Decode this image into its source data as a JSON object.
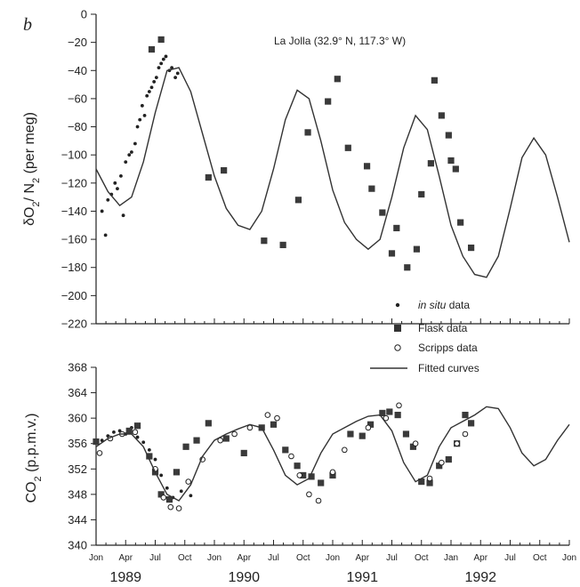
{
  "chart_data": [
    {
      "type": "scatter",
      "panel_label": "b",
      "annotation": "La Jolla (32.9° N, 117.3° W)",
      "ylabel_parts": [
        "δO",
        "2",
        "/ N",
        "2",
        " (per meg)"
      ],
      "ylim": [
        -220,
        0
      ],
      "yticks": [
        0,
        -20,
        -40,
        -60,
        -80,
        -100,
        -120,
        -140,
        -160,
        -180,
        -200,
        -220
      ],
      "xlim": [
        1989.0,
        1993.0
      ],
      "series": [
        {
          "name": "in situ data",
          "marker": "dot",
          "x": [
            1989.05,
            1989.08,
            1989.1,
            1989.13,
            1989.16,
            1989.18,
            1989.21,
            1989.23,
            1989.25,
            1989.28,
            1989.3,
            1989.33,
            1989.35,
            1989.37,
            1989.39,
            1989.41,
            1989.43,
            1989.45,
            1989.47,
            1989.49,
            1989.51,
            1989.53,
            1989.55,
            1989.57,
            1989.59,
            1989.62,
            1989.64,
            1989.67,
            1989.69
          ],
          "y": [
            -140,
            -157,
            -132,
            -128,
            -120,
            -124,
            -115,
            -143,
            -105,
            -100,
            -98,
            -92,
            -80,
            -75,
            -65,
            -72,
            -58,
            -55,
            -52,
            -48,
            -45,
            -38,
            -35,
            -32,
            -30,
            -40,
            -38,
            -45,
            -42
          ]
        },
        {
          "name": "Flask data",
          "marker": "square",
          "x": [
            1989.47,
            1989.55,
            1989.95,
            1990.08,
            1990.42,
            1990.58,
            1990.71,
            1990.79,
            1990.96,
            1991.04,
            1991.13,
            1991.29,
            1991.33,
            1991.42,
            1991.5,
            1991.54,
            1991.63,
            1991.71,
            1991.75,
            1991.83,
            1991.86,
            1991.92,
            1991.98,
            1992.0,
            1992.04,
            1992.08,
            1992.17
          ],
          "y": [
            -25,
            -18,
            -116,
            -111,
            -161,
            -164,
            -132,
            -84,
            -62,
            -46,
            -95,
            -108,
            -124,
            -141,
            -170,
            -152,
            -180,
            -167,
            -128,
            -106,
            -47,
            -72,
            -86,
            -104,
            -110,
            -148,
            -166
          ]
        },
        {
          "name": "Fitted curves",
          "marker": "line",
          "x": [
            1989.0,
            1989.1,
            1989.2,
            1989.3,
            1989.4,
            1989.5,
            1989.6,
            1989.7,
            1989.8,
            1989.9,
            1990.0,
            1990.1,
            1990.2,
            1990.3,
            1990.4,
            1990.5,
            1990.6,
            1990.7,
            1990.8,
            1990.9,
            1991.0,
            1991.1,
            1991.2,
            1991.3,
            1991.4,
            1991.5,
            1991.6,
            1991.7,
            1991.8,
            1991.9,
            1992.0,
            1992.1,
            1992.2,
            1992.3,
            1992.4,
            1992.5,
            1992.6,
            1992.7,
            1992.8,
            1992.9,
            1993.0
          ],
          "y": [
            -110,
            -126,
            -136,
            -130,
            -105,
            -70,
            -40,
            -38,
            -55,
            -85,
            -115,
            -138,
            -150,
            -153,
            -140,
            -110,
            -75,
            -54,
            -60,
            -90,
            -125,
            -148,
            -160,
            -167,
            -160,
            -130,
            -95,
            -72,
            -82,
            -115,
            -150,
            -172,
            -185,
            -187,
            -172,
            -138,
            -102,
            -88,
            -100,
            -130,
            -162
          ]
        }
      ]
    },
    {
      "type": "scatter",
      "ylabel_parts": [
        "CO",
        "2",
        " (p.p.m.v.)"
      ],
      "ylim": [
        340,
        368
      ],
      "yticks": [
        368,
        364,
        360,
        356,
        352,
        348,
        344,
        340
      ],
      "xlim": [
        1989.0,
        1993.0
      ],
      "x_tick_labels": [
        "Jon",
        "Apr",
        "Jul",
        "Oct",
        "Jon",
        "Apr",
        "Jul",
        "Oct",
        "Jon",
        "Apr",
        "Jul",
        "Oct",
        "Jan",
        "Apr",
        "Jul",
        "Oct",
        "Jon"
      ],
      "year_labels": [
        "1989",
        "1990",
        "1991",
        "1992"
      ],
      "legend": [
        "in situ data",
        "Flask data",
        "Scripps data",
        "Fitted curves"
      ],
      "legend_markers": [
        "dot",
        "square",
        "circle",
        "line"
      ],
      "series": [
        {
          "name": "in situ data",
          "marker": "dot",
          "x": [
            1989.05,
            1989.1,
            1989.15,
            1989.2,
            1989.25,
            1989.3,
            1989.35,
            1989.4,
            1989.45,
            1989.5,
            1989.55,
            1989.6,
            1989.65,
            1989.72,
            1989.8
          ],
          "y": [
            356.5,
            357.2,
            357.8,
            358.0,
            357.5,
            358.5,
            357.0,
            356.2,
            355.0,
            353.5,
            351.0,
            349.0,
            347.5,
            348.5,
            347.8
          ]
        },
        {
          "name": "Flask data",
          "marker": "square",
          "x": [
            1989.0,
            1989.28,
            1989.35,
            1989.45,
            1989.5,
            1989.55,
            1989.62,
            1989.68,
            1989.76,
            1989.85,
            1989.95,
            1990.1,
            1990.25,
            1990.4,
            1990.5,
            1990.6,
            1990.7,
            1990.75,
            1990.82,
            1990.9,
            1991.0,
            1991.15,
            1991.25,
            1991.32,
            1991.42,
            1991.48,
            1991.55,
            1991.62,
            1991.68,
            1991.75,
            1991.82,
            1991.9,
            1991.98,
            1992.05,
            1992.12,
            1992.17
          ],
          "y": [
            356.3,
            358.0,
            358.8,
            354.0,
            351.5,
            348.0,
            347.2,
            351.5,
            355.5,
            356.5,
            359.2,
            356.8,
            354.5,
            358.5,
            359.0,
            355.0,
            352.5,
            351.0,
            350.8,
            349.8,
            351.0,
            357.5,
            357.2,
            359.0,
            360.8,
            361.0,
            360.5,
            357.5,
            355.5,
            350.0,
            349.8,
            352.5,
            353.5,
            356.0,
            360.5,
            359.2
          ]
        },
        {
          "name": "Scripps data",
          "marker": "circle",
          "x": [
            1989.03,
            1989.12,
            1989.22,
            1989.33,
            1989.5,
            1989.57,
            1989.63,
            1989.7,
            1989.78,
            1989.9,
            1990.05,
            1990.17,
            1990.3,
            1990.45,
            1990.53,
            1990.65,
            1990.72,
            1990.8,
            1990.88,
            1991.0,
            1991.1,
            1991.3,
            1991.45,
            1991.56,
            1991.7,
            1991.82,
            1991.92,
            1992.05,
            1992.12
          ],
          "y": [
            354.5,
            356.8,
            357.5,
            357.8,
            352.0,
            347.5,
            346.0,
            345.8,
            350.0,
            353.5,
            356.5,
            357.5,
            358.5,
            360.5,
            360.0,
            354.0,
            351.0,
            348.0,
            347.0,
            351.5,
            355.0,
            358.5,
            360.0,
            362.0,
            356.0,
            350.5,
            353.0,
            356.0,
            357.5
          ]
        },
        {
          "name": "Fitted curves",
          "marker": "line",
          "x": [
            1989.0,
            1989.1,
            1989.2,
            1989.3,
            1989.4,
            1989.5,
            1989.6,
            1989.7,
            1989.8,
            1989.9,
            1990.0,
            1990.1,
            1990.2,
            1990.3,
            1990.4,
            1990.5,
            1990.6,
            1990.7,
            1990.8,
            1990.9,
            1991.0,
            1991.1,
            1991.2,
            1991.3,
            1991.4,
            1991.5,
            1991.6,
            1991.7,
            1991.8,
            1991.9,
            1992.0,
            1992.1,
            1992.2,
            1992.3,
            1992.4,
            1992.5,
            1992.6,
            1992.7,
            1992.8,
            1992.9,
            1993.0
          ],
          "y": [
            355.5,
            356.8,
            357.5,
            357.5,
            355.5,
            351.5,
            348.0,
            347.0,
            349.5,
            354.0,
            356.5,
            357.5,
            358.3,
            359.0,
            358.5,
            355.0,
            351.0,
            349.5,
            350.5,
            354.5,
            357.5,
            358.5,
            359.5,
            360.3,
            360.5,
            358.0,
            353.0,
            350.0,
            351.0,
            355.5,
            358.5,
            359.5,
            360.5,
            361.8,
            361.5,
            358.5,
            354.5,
            352.5,
            353.5,
            356.5,
            359.0
          ]
        }
      ]
    }
  ]
}
